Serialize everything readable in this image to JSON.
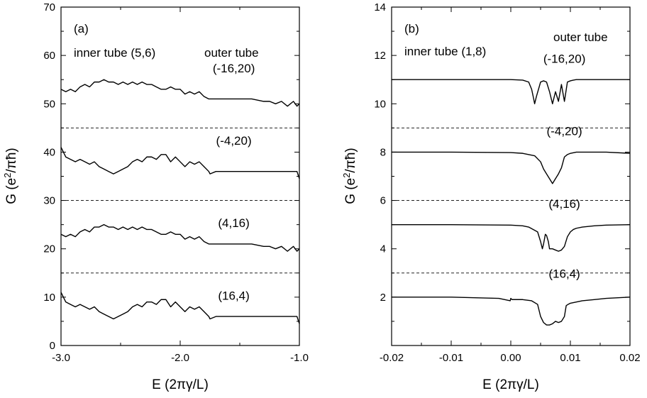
{
  "chart_data": [
    {
      "type": "line",
      "panel_label": "(a)",
      "xlabel_main": "E (2πγ/L)",
      "ylabel_main": "G (e",
      "ylabel_sup": "2",
      "ylabel_tail": "/πħ)",
      "xlim": [
        -3.0,
        -1.0
      ],
      "ylim": [
        0,
        70
      ],
      "xticks": [
        -3.0,
        -2.0,
        -1.0
      ],
      "xtick_labels": [
        "-3.0",
        "-2.0",
        "-1.0"
      ],
      "yticks": [
        0,
        10,
        20,
        30,
        40,
        50,
        60,
        70
      ],
      "ytick_labels": [
        "0",
        "10",
        "20",
        "30",
        "40",
        "50",
        "60",
        "70"
      ],
      "inner_label": "inner tube (5,6)",
      "outer_label": "outer tube",
      "dashed_lines": [
        15,
        30,
        45
      ],
      "series": [
        {
          "label": "(-16,20)",
          "label_x": -1.55,
          "label_y": 56.5,
          "x": [
            -3.0,
            -2.96,
            -2.92,
            -2.88,
            -2.84,
            -2.8,
            -2.76,
            -2.72,
            -2.68,
            -2.64,
            -2.6,
            -2.56,
            -2.52,
            -2.48,
            -2.44,
            -2.4,
            -2.36,
            -2.32,
            -2.28,
            -2.24,
            -2.2,
            -2.16,
            -2.12,
            -2.08,
            -2.04,
            -2.0,
            -1.96,
            -1.92,
            -1.88,
            -1.84,
            -1.8,
            -1.76,
            -1.75,
            -1.7,
            -1.6,
            -1.5,
            -1.4,
            -1.3,
            -1.25,
            -1.2,
            -1.15,
            -1.1,
            -1.05,
            -1.02,
            -1.0
          ],
          "y": [
            53,
            52.5,
            53,
            52.5,
            53.5,
            54,
            53.5,
            54.5,
            54.5,
            55,
            54.5,
            54.5,
            54,
            54.5,
            54,
            54.5,
            54,
            54.5,
            54,
            54,
            53.5,
            53,
            53,
            53.5,
            53,
            53,
            52,
            52.5,
            52,
            52.5,
            51.5,
            51,
            51,
            51,
            51,
            51,
            51,
            50.5,
            50.5,
            50,
            50.5,
            49.5,
            50.5,
            49.5,
            50
          ]
        },
        {
          "label": "(-4,20)",
          "label_x": -1.55,
          "label_y": 41.5,
          "x": [
            -3.0,
            -2.96,
            -2.92,
            -2.88,
            -2.84,
            -2.8,
            -2.76,
            -2.72,
            -2.68,
            -2.64,
            -2.6,
            -2.56,
            -2.52,
            -2.48,
            -2.44,
            -2.4,
            -2.36,
            -2.32,
            -2.28,
            -2.24,
            -2.2,
            -2.16,
            -2.12,
            -2.08,
            -2.04,
            -2.0,
            -1.96,
            -1.92,
            -1.88,
            -1.84,
            -1.8,
            -1.76,
            -1.75,
            -1.7,
            -1.6,
            -1.5,
            -1.4,
            -1.3,
            -1.25,
            -1.2,
            -1.15,
            -1.1,
            -1.05,
            -1.02,
            -1.0
          ],
          "y": [
            41,
            39,
            38.5,
            38,
            38.5,
            38,
            37.5,
            38,
            37,
            36.5,
            36,
            35.5,
            36,
            36.5,
            37,
            38,
            38.5,
            38,
            39,
            39,
            38.5,
            39.5,
            39.5,
            38,
            39,
            38,
            37,
            38,
            37.5,
            38,
            37,
            36,
            35.5,
            36,
            36,
            36,
            36,
            36,
            36,
            36,
            36,
            36,
            36,
            36,
            34.5
          ]
        },
        {
          "label": "(4,16)",
          "label_x": -1.55,
          "label_y": 24.5,
          "x": [
            -3.0,
            -2.96,
            -2.92,
            -2.88,
            -2.84,
            -2.8,
            -2.76,
            -2.72,
            -2.68,
            -2.64,
            -2.6,
            -2.56,
            -2.52,
            -2.48,
            -2.44,
            -2.4,
            -2.36,
            -2.32,
            -2.28,
            -2.24,
            -2.2,
            -2.16,
            -2.12,
            -2.08,
            -2.04,
            -2.0,
            -1.96,
            -1.92,
            -1.88,
            -1.84,
            -1.8,
            -1.76,
            -1.75,
            -1.7,
            -1.6,
            -1.5,
            -1.4,
            -1.3,
            -1.25,
            -1.2,
            -1.15,
            -1.1,
            -1.05,
            -1.02,
            -1.0
          ],
          "y": [
            23,
            22.5,
            23,
            22.5,
            23.5,
            24,
            23.5,
            24.5,
            24.5,
            25,
            24.5,
            24.5,
            24,
            24.5,
            24,
            24.5,
            24,
            24.5,
            24,
            24,
            23.5,
            23,
            23,
            23.5,
            23,
            23,
            22,
            22.5,
            22,
            22.5,
            21.5,
            21,
            21,
            21,
            21,
            21,
            21,
            20.5,
            20.5,
            20,
            20.5,
            19.5,
            20.5,
            19.5,
            20
          ]
        },
        {
          "label": "(16,4)",
          "label_x": -1.55,
          "label_y": 9.5,
          "x": [
            -3.0,
            -2.96,
            -2.92,
            -2.88,
            -2.84,
            -2.8,
            -2.76,
            -2.72,
            -2.68,
            -2.64,
            -2.6,
            -2.56,
            -2.52,
            -2.48,
            -2.44,
            -2.4,
            -2.36,
            -2.32,
            -2.28,
            -2.24,
            -2.2,
            -2.16,
            -2.12,
            -2.08,
            -2.04,
            -2.0,
            -1.96,
            -1.92,
            -1.88,
            -1.84,
            -1.8,
            -1.76,
            -1.75,
            -1.7,
            -1.6,
            -1.5,
            -1.4,
            -1.3,
            -1.25,
            -1.2,
            -1.15,
            -1.1,
            -1.05,
            -1.02,
            -1.0
          ],
          "y": [
            11,
            9,
            8.5,
            8,
            8.5,
            8,
            7.5,
            8,
            7,
            6.5,
            6,
            5.5,
            6,
            6.5,
            7,
            8,
            8.5,
            8,
            9,
            9,
            8.5,
            9.5,
            9.5,
            8,
            9,
            8,
            7,
            8,
            7.5,
            8,
            7,
            6,
            5.5,
            6,
            6,
            6,
            6,
            6,
            6,
            6,
            6,
            6,
            6,
            6,
            4.5
          ]
        }
      ]
    },
    {
      "type": "line",
      "panel_label": "(b)",
      "xlabel_main": "E (2πγ/L)",
      "ylabel_main": "G (e",
      "ylabel_sup": "2",
      "ylabel_tail": "/πħ)",
      "xlim": [
        -0.02,
        0.02
      ],
      "ylim": [
        0,
        14
      ],
      "xticks": [
        -0.02,
        -0.01,
        0.0,
        0.01,
        0.02
      ],
      "xtick_labels": [
        "-0.02",
        "-0.01",
        "0.00",
        "0.01",
        "0.02"
      ],
      "yticks": [
        2,
        4,
        6,
        8,
        10,
        12,
        14
      ],
      "ytick_labels": [
        "2",
        "4",
        "6",
        "8",
        "10",
        "12",
        "14"
      ],
      "inner_label": "inner tube (1,8)",
      "outer_label": "outer tube",
      "dashed_lines": [
        3,
        6,
        9
      ],
      "series": [
        {
          "label": "(-16,20)",
          "label_x": 0.009,
          "label_y": 11.7,
          "x": [
            -0.02,
            -0.01,
            0.0,
            0.002,
            0.003,
            0.0035,
            0.0038,
            0.004,
            0.0043,
            0.005,
            0.0055,
            0.006,
            0.0065,
            0.007,
            0.0075,
            0.008,
            0.0085,
            0.009,
            0.0095,
            0.01,
            0.0105,
            0.011,
            0.012,
            0.014,
            0.016,
            0.02
          ],
          "y": [
            11,
            11,
            11,
            10.98,
            10.9,
            10.6,
            10.25,
            10.0,
            10.3,
            10.9,
            10.95,
            10.9,
            10.5,
            10.0,
            10.5,
            10.1,
            10.8,
            10.1,
            10.9,
            10.95,
            10.98,
            11,
            11,
            11,
            11,
            11
          ]
        },
        {
          "label": "(-4,20)",
          "label_x": 0.009,
          "label_y": 8.7,
          "x": [
            -0.02,
            -0.01,
            0.0,
            0.002,
            0.004,
            0.005,
            0.0055,
            0.006,
            0.0065,
            0.007,
            0.0075,
            0.008,
            0.0085,
            0.009,
            0.0095,
            0.01,
            0.011,
            0.012,
            0.014,
            0.016,
            0.02
          ],
          "y": [
            8,
            8,
            7.98,
            7.95,
            7.85,
            7.6,
            7.3,
            7.1,
            6.9,
            6.7,
            6.9,
            7.1,
            7.35,
            7.8,
            7.9,
            7.95,
            8,
            8,
            8,
            8,
            7.95
          ]
        },
        {
          "label": "(4,16)",
          "label_x": 0.009,
          "label_y": 5.7,
          "x": [
            -0.02,
            -0.01,
            0.0,
            0.002,
            0.003,
            0.0045,
            0.005,
            0.0053,
            0.0055,
            0.0058,
            0.006,
            0.0063,
            0.0065,
            0.007,
            0.0075,
            0.008,
            0.0085,
            0.009,
            0.0095,
            0.01,
            0.0105,
            0.011,
            0.012,
            0.014,
            0.016,
            0.02
          ],
          "y": [
            5,
            5,
            4.98,
            4.95,
            4.9,
            4.7,
            4.3,
            4.0,
            4.2,
            4.6,
            4.55,
            4.3,
            4.0,
            4.0,
            3.95,
            3.9,
            3.95,
            4.1,
            4.5,
            4.7,
            4.8,
            4.85,
            4.9,
            4.95,
            4.98,
            5
          ]
        },
        {
          "label": "(16,4)",
          "label_x": 0.009,
          "label_y": 2.8,
          "x": [
            -0.02,
            -0.01,
            -0.002,
            -0.0001,
            0.0,
            0.0002,
            0.002,
            0.0035,
            0.0045,
            0.005,
            0.0055,
            0.006,
            0.0065,
            0.007,
            0.0075,
            0.008,
            0.0085,
            0.009,
            0.0093,
            0.0096,
            0.01,
            0.011,
            0.012,
            0.014,
            0.016,
            0.02
          ],
          "y": [
            2,
            2,
            1.95,
            1.85,
            1.95,
            1.9,
            1.9,
            1.85,
            1.7,
            1.2,
            0.95,
            0.85,
            0.85,
            0.9,
            1.0,
            0.95,
            1.0,
            1.2,
            1.65,
            1.7,
            1.75,
            1.8,
            1.85,
            1.9,
            1.95,
            2.0
          ]
        }
      ]
    }
  ]
}
